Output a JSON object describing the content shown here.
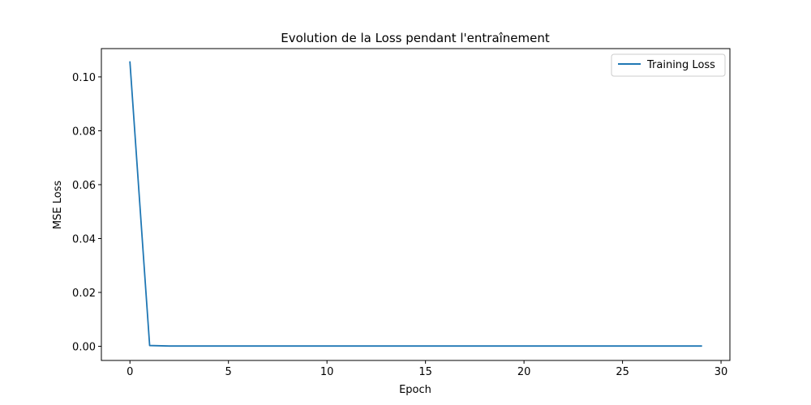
{
  "chart_data": {
    "type": "line",
    "title": "Evolution de la Loss pendant l'entraînement",
    "xlabel": "Epoch",
    "ylabel": "MSE Loss",
    "xlim": [
      -1.45,
      30.45
    ],
    "ylim": [
      -0.00525,
      0.1105
    ],
    "xticks": [
      0,
      5,
      10,
      15,
      20,
      25,
      30
    ],
    "xtick_labels": [
      "0",
      "5",
      "10",
      "15",
      "20",
      "25",
      "30"
    ],
    "yticks": [
      0.0,
      0.02,
      0.04,
      0.06,
      0.08,
      0.1
    ],
    "ytick_labels": [
      "0.00",
      "0.02",
      "0.04",
      "0.06",
      "0.08",
      "0.10"
    ],
    "grid": false,
    "legend_position": "upper right",
    "series": [
      {
        "name": "Training Loss",
        "color": "#1f77b4",
        "x": [
          0,
          1,
          2,
          3,
          4,
          5,
          6,
          7,
          8,
          9,
          10,
          11,
          12,
          13,
          14,
          15,
          16,
          17,
          18,
          19,
          20,
          21,
          22,
          23,
          24,
          25,
          26,
          27,
          28,
          29
        ],
        "y": [
          0.1055,
          0.0003,
          0.0001,
          0.0001,
          0.0001,
          0.0001,
          0.0001,
          0.0001,
          0.0001,
          0.0001,
          0.0001,
          0.0001,
          0.0001,
          0.0001,
          0.0001,
          0.0001,
          0.0001,
          0.0001,
          0.0001,
          0.0001,
          0.0001,
          0.0001,
          0.0001,
          0.0001,
          0.0001,
          0.0001,
          0.0001,
          0.0001,
          0.0001,
          0.0001
        ]
      }
    ]
  }
}
